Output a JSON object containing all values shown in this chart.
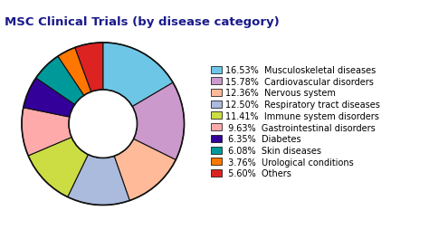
{
  "title": "MSC Clinical Trials (by disease category)",
  "title_color": "#1a1a8c",
  "categories": [
    "Musculoskeletal diseases",
    "Cardiovascular disorders",
    "Nervous system",
    "Respiratory tract diseases",
    "Immune system disorders",
    "Gastrointestinal disorders",
    "Diabetes",
    "Skin diseases",
    "Urological conditions",
    "Others"
  ],
  "percentages": [
    16.53,
    15.78,
    12.36,
    12.5,
    11.41,
    9.63,
    6.35,
    6.08,
    3.76,
    5.6
  ],
  "colors": [
    "#6EC6E6",
    "#CC99CC",
    "#FFBB99",
    "#AABBDD",
    "#CCDD44",
    "#FFAAAA",
    "#330099",
    "#009999",
    "#FF7700",
    "#DD2222"
  ],
  "pct_labels": [
    "16.53%",
    "15.78%",
    "12.36%",
    "12.50%",
    "11.41%",
    " 9.63%",
    " 6.35%",
    " 6.08%",
    " 3.76%",
    " 5.60%"
  ],
  "background_color": "#FFFFFF",
  "legend_fontsize": 7.0,
  "title_fontsize": 9.5,
  "wedge_edge_color": "#111111",
  "wedge_linewidth": 0.8,
  "donut_width": 0.58
}
